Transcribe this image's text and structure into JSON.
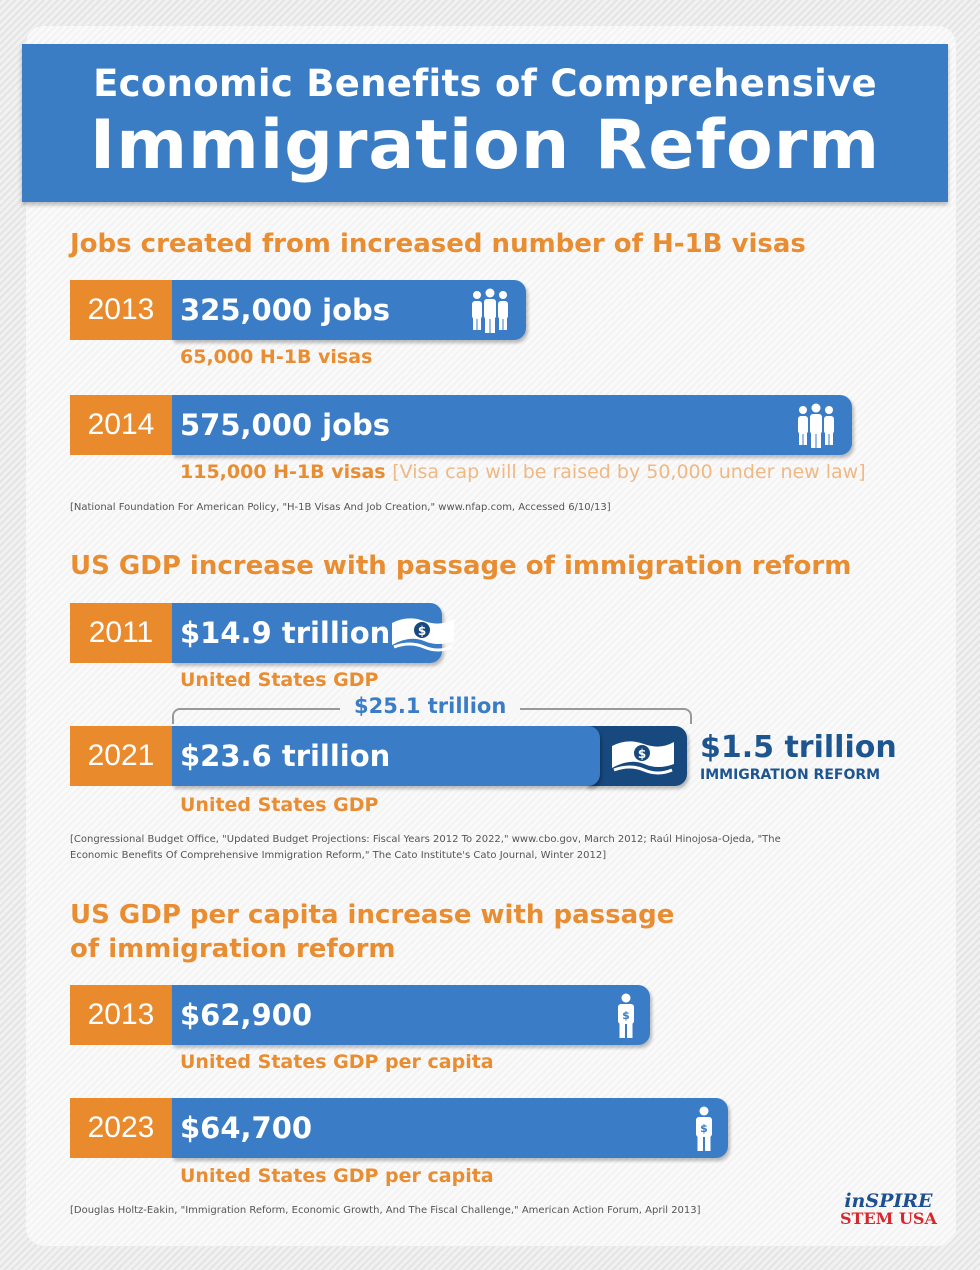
{
  "header": {
    "subtitle": "Economic Benefits of Comprehensive",
    "title": "Immigration Reform"
  },
  "chart_data": [
    {
      "type": "bar",
      "title": "Jobs created from increased number of H-1B visas",
      "unit": "jobs",
      "categories": [
        "2013",
        "2014"
      ],
      "values": [
        325000,
        575000
      ],
      "labels": [
        "325,000 jobs",
        "575,000 jobs"
      ],
      "sublabels": [
        "65,000 H-1B visas",
        "115,000 H-1B visas"
      ],
      "note": "[Visa cap will be raised by 50,000 under new law]",
      "source": "[National Foundation For American Policy, \"H-1B Visas And Job Creation,\" www.nfap.com, Accessed 6/10/13]"
    },
    {
      "type": "bar",
      "title": "US GDP increase with passage of immigration reform",
      "unit": "trillion USD",
      "categories": [
        "2011",
        "2021"
      ],
      "values": [
        14.9,
        23.6
      ],
      "labels": [
        "$14.9 trillion",
        "$23.6 trillion"
      ],
      "sublabels": [
        "United States GDP",
        "United States GDP"
      ],
      "stacked_addition": {
        "value": 1.5,
        "label": "$1.5 trillion",
        "sublabel": "IMMIGRATION REFORM"
      },
      "total": {
        "value": 25.1,
        "label": "$25.1 trillion"
      },
      "source_lines": [
        "[Congressional Budget Office, \"Updated Budget Projections: Fiscal Years 2012 To 2022,\" www.cbo.gov, March 2012; Raúl Hinojosa-Ojeda, \"The",
        "Economic Benefits Of Comprehensive Immigration Reform,\" The Cato Institute's Cato Journal, Winter 2012]"
      ]
    },
    {
      "type": "bar",
      "title_lines": [
        "US GDP per capita increase with passage",
        "of immigration reform"
      ],
      "unit": "USD",
      "categories": [
        "2013",
        "2023"
      ],
      "values": [
        62900,
        64700
      ],
      "labels": [
        "$62,900",
        "$64,700"
      ],
      "sublabels": [
        "United States GDP per capita",
        "United States GDP per capita"
      ],
      "source": "[Douglas Holtz-Eakin, \"Immigration Reform, Economic Growth, And The Fiscal Challenge,\" American Action Forum, April 2013]"
    }
  ],
  "logo": {
    "line1": "inSPIRE",
    "line2": "STEM USA"
  },
  "colors": {
    "blue": "#3a7dc6",
    "orange": "#e98a2c",
    "dark_blue": "#17497f"
  }
}
